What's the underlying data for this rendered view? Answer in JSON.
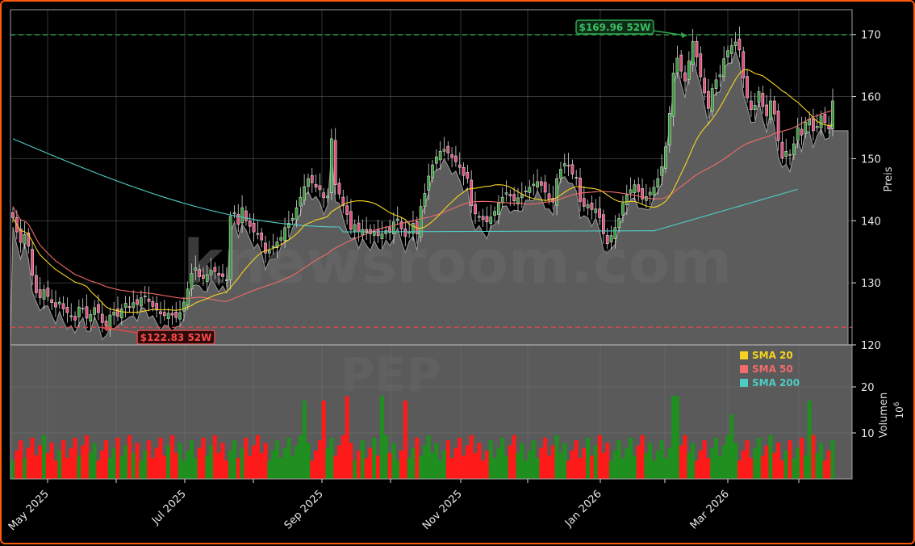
{
  "chart_data": {
    "type": "candlestick",
    "ticker": "PEP",
    "watermark": "knewsroom.com",
    "price_axis": {
      "label": "Preis",
      "ticks": [
        120,
        130,
        140,
        150,
        160,
        170
      ],
      "ylim": [
        120,
        174
      ]
    },
    "volume_axis": {
      "label": "Volumen",
      "unit": "10^6",
      "ticks": [
        10,
        20
      ],
      "ylim": [
        0,
        27
      ]
    },
    "x_ticks": [
      "May 2025",
      "Jul 2025",
      "Sep 2025",
      "Nov 2025",
      "Jan 2026",
      "Mar 2026"
    ],
    "legend": [
      {
        "label": "SMA 20",
        "color": "#f5d320"
      },
      {
        "label": "SMA 50",
        "color": "#f26b6b"
      },
      {
        "label": "SMA 200",
        "color": "#4ecdc4"
      }
    ],
    "annotations": {
      "high_52w": {
        "label": "$169.96 52W",
        "value": 169.96,
        "color": "#2ea84f"
      },
      "low_52w": {
        "label": "$122.83 52W",
        "value": 122.83,
        "color": "#e04848"
      }
    },
    "close_prices": [
      140.5,
      138.2,
      136.5,
      137.8,
      135.9,
      131.2,
      128.4,
      127.6,
      128.9,
      127.8,
      126.8,
      126.1,
      126.9,
      125.8,
      125.2,
      124.6,
      124.0,
      126.1,
      125.9,
      124.3,
      124.9,
      126.0,
      125.2,
      123.6,
      123.0,
      124.8,
      125.3,
      124.6,
      125.8,
      126.7,
      126.0,
      126.8,
      126.5,
      127.6,
      127.9,
      127.0,
      126.2,
      125.6,
      125.0,
      124.7,
      125.1,
      124.8,
      124.4,
      125.2,
      126.9,
      129.0,
      131.5,
      132.4,
      131.0,
      130.7,
      131.3,
      132.0,
      131.8,
      131.2,
      131.0,
      130.5,
      140.7,
      141.3,
      139.4,
      142.1,
      140.0,
      139.1,
      138.2,
      137.8,
      136.9,
      134.8,
      135.2,
      135.9,
      136.6,
      137.3,
      138.9,
      139.6,
      140.4,
      142.1,
      143.8,
      145.5,
      146.8,
      146.1,
      145.4,
      145.0,
      143.7,
      144.0,
      153.2,
      145.8,
      144.3,
      142.4,
      141.0,
      138.6,
      139.4,
      138.2,
      138.6,
      138.1,
      137.9,
      138.3,
      137.6,
      137.9,
      138.4,
      138.1,
      139.8,
      140.3,
      138.7,
      137.5,
      138.2,
      139.6,
      137.9,
      142.3,
      144.4,
      147.2,
      149.0,
      150.3,
      151.2,
      151.5,
      150.9,
      150.2,
      149.5,
      148.6,
      147.3,
      146.8,
      142.4,
      141.1,
      140.7,
      140.2,
      139.8,
      140.6,
      141.5,
      142.9,
      143.8,
      144.5,
      144.0,
      143.2,
      143.7,
      144.2,
      144.8,
      145.4,
      145.9,
      146.3,
      145.7,
      144.6,
      143.4,
      143.0,
      146.8,
      148.3,
      149.2,
      148.8,
      147.5,
      146.9,
      143.1,
      142.3,
      142.6,
      141.8,
      141.9,
      140.5,
      137.9,
      136.3,
      137.6,
      138.9,
      140.4,
      142.8,
      144.2,
      145.0,
      145.8,
      144.7,
      143.5,
      143.9,
      144.6,
      145.4,
      146.8,
      148.7,
      151.9,
      157.3,
      163.8,
      166.2,
      164.1,
      162.5,
      165.7,
      168.9,
      166.4,
      163.2,
      160.6,
      158.1,
      161.3,
      162.7,
      163.5,
      166.1,
      167.4,
      168.2,
      168.8,
      167.5,
      163.0,
      159.8,
      157.9,
      158.6,
      160.8,
      158.4,
      156.9,
      159.3,
      157.2,
      152.9,
      150.1,
      151.2,
      150.6,
      152.4,
      155.0,
      153.8,
      155.9,
      156.4,
      154.5,
      155.2,
      156.9,
      155.8,
      154.8,
      159.3
    ],
    "sma20_endpoints": {
      "start": 141,
      "end": 154.5
    },
    "sma50_endpoints": {
      "start": 142.3,
      "end": 159.8
    },
    "sma200_endpoints": {
      "start": 153.2,
      "end": 146.7
    }
  }
}
